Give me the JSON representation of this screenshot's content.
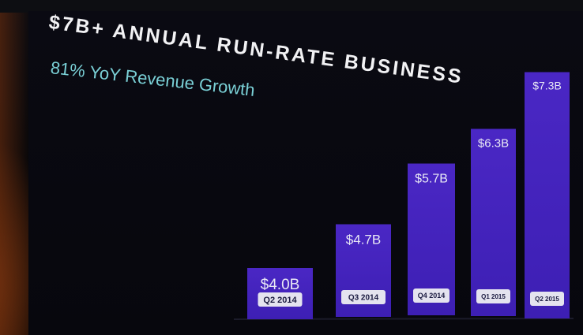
{
  "headline": "$7B+ ANNUAL RUN-RATE BUSINESS",
  "subheadline": "81% YoY Revenue Growth",
  "colors": {
    "bar": "#3d1fb4",
    "bar_top": "#4a27c4",
    "label_chip": "#e4e3ef",
    "headline": "#f2f2f4",
    "subheadline": "#7ad0d6"
  },
  "chart_data": {
    "type": "bar",
    "title": "",
    "categories": [
      "Q2 2014",
      "Q3 2014",
      "Q4 2014",
      "Q1 2015",
      "Q2 2015"
    ],
    "values": [
      4.0,
      4.7,
      5.7,
      6.3,
      7.3
    ],
    "value_labels": [
      "$4.0B",
      "$4.7B",
      "$5.7B",
      "$6.3B",
      "$7.3B"
    ],
    "xlabel": "",
    "ylabel": "",
    "grid": false,
    "legend": "none"
  }
}
